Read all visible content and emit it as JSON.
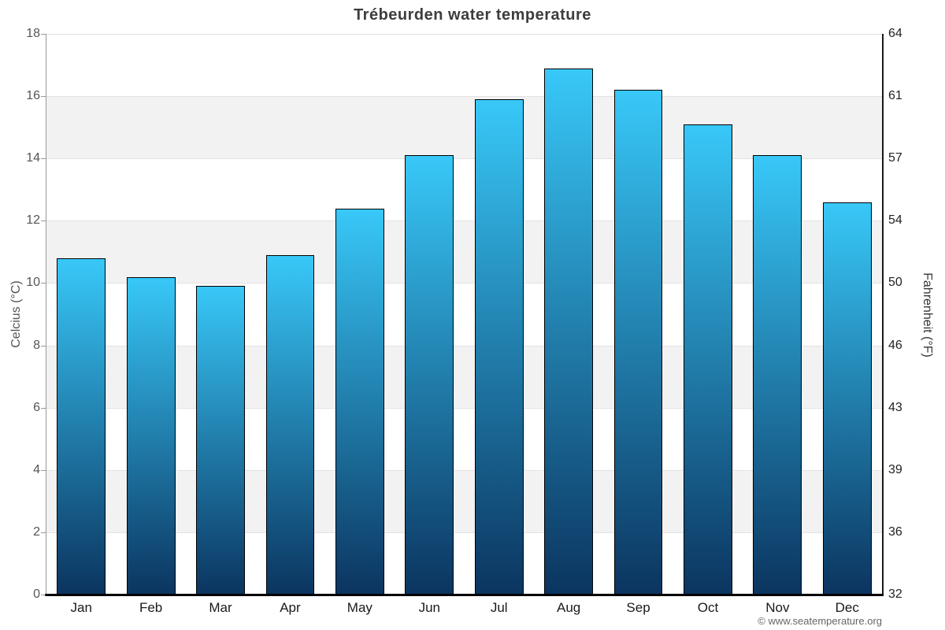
{
  "title": "Trébeurden water temperature",
  "chart_data": {
    "type": "bar",
    "title": "Trébeurden water temperature",
    "categories": [
      "Jan",
      "Feb",
      "Mar",
      "Apr",
      "May",
      "Jun",
      "Jul",
      "Aug",
      "Sep",
      "Oct",
      "Nov",
      "Dec"
    ],
    "values": [
      10.8,
      10.2,
      9.9,
      10.9,
      12.4,
      14.1,
      15.9,
      16.9,
      16.2,
      15.1,
      14.1,
      12.6
    ],
    "ylabel_left": "Celcius (°C)",
    "ylabel_right": "Fahrenheit (°F)",
    "ylim_left": [
      0,
      18
    ],
    "yticks_left": [
      0,
      2,
      4,
      6,
      8,
      10,
      12,
      14,
      16,
      18
    ],
    "yticks_right_labels": [
      "32",
      "36",
      "39",
      "43",
      "46",
      "50",
      "54",
      "57",
      "61",
      "64"
    ],
    "grid": "horizontal gridlines with alternating white/gray bands",
    "legend": "none"
  },
  "footer": {
    "copyright": "© www.seatemperature.org"
  },
  "colors": {
    "bar_top": "#38c8f8",
    "bar_bottom": "#0b3560",
    "bar_border": "#010101",
    "band_gray": "#f2f2f2",
    "band_white": "#ffffff",
    "gridline": "#e2e2e2",
    "axis_left": "#999999",
    "axis_right": "#1a1a1a",
    "axis_bottom": "#000000",
    "tick_color": "#999999"
  }
}
